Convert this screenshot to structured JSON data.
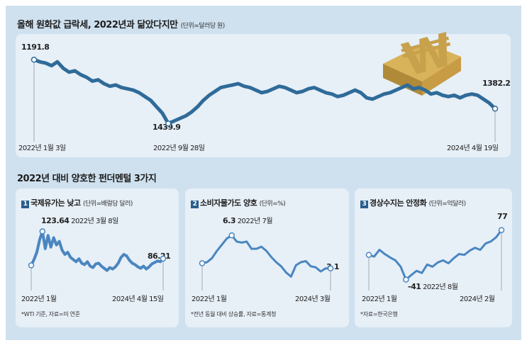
{
  "colors": {
    "line": "#2f6b99",
    "small_line": "#4a86c0",
    "bg": "#cfe1ef",
    "panel": "#e7eff7"
  },
  "header": {
    "title": "올해 원화값 급락세, 2022년과 닮았다지만",
    "unit": "(단위=달러당 원)"
  },
  "section2": {
    "title": "2022년 대비 양호한 펀더멘털 3가지"
  },
  "chart_data": [
    {
      "type": "line",
      "title": "올해 원화값 급락세, 2022년과 닮았다지만",
      "ylabel": "달러당 원",
      "y_inverted": true,
      "ylim": [
        1180,
        1450
      ],
      "x_labels": [
        "2022년 1월 3일",
        "2022년 9월 28일",
        "2024년 4월 19일"
      ],
      "annotations": [
        {
          "label": "1191.8",
          "x": "2022년 1월 3일"
        },
        {
          "label": "1439.9",
          "x": "2022년 9월 28일"
        },
        {
          "label": "1382.2",
          "x": "2024년 4월 19일"
        }
      ],
      "values": [
        1191.8,
        1200,
        1205,
        1215,
        1200,
        1225,
        1240,
        1235,
        1250,
        1260,
        1275,
        1270,
        1285,
        1295,
        1290,
        1300,
        1305,
        1310,
        1320,
        1335,
        1350,
        1375,
        1400,
        1439.9,
        1430,
        1420,
        1410,
        1395,
        1375,
        1350,
        1330,
        1315,
        1300,
        1295,
        1290,
        1285,
        1295,
        1300,
        1310,
        1320,
        1315,
        1305,
        1295,
        1300,
        1310,
        1320,
        1315,
        1305,
        1300,
        1310,
        1320,
        1325,
        1335,
        1330,
        1320,
        1310,
        1320,
        1340,
        1345,
        1335,
        1325,
        1320,
        1310,
        1300,
        1290,
        1305,
        1300,
        1310,
        1325,
        1320,
        1330,
        1335,
        1330,
        1340,
        1330,
        1325,
        1330,
        1345,
        1360,
        1382.2
      ]
    },
    {
      "type": "line",
      "number": "1",
      "title": "국제유가는 낮고",
      "unit": "(단위=배럴당 달러)",
      "ylim": [
        60,
        130
      ],
      "x_labels": [
        "2022년 1월",
        "2024년 4월 15일"
      ],
      "annotations": [
        {
          "label": "123.64",
          "date": "2022년 3월 8일"
        },
        {
          "label": "86.21"
        }
      ],
      "note": "*WTI 기준, 자료=미 연준",
      "values": [
        77,
        85,
        95,
        112,
        123.64,
        100,
        118,
        102,
        115,
        105,
        110,
        98,
        92,
        95,
        88,
        85,
        82,
        86,
        80,
        78,
        82,
        76,
        74,
        79,
        80,
        76,
        73,
        70,
        74,
        72,
        75,
        80,
        88,
        92,
        90,
        84,
        80,
        78,
        75,
        73,
        76,
        72,
        75,
        79,
        81,
        83,
        82,
        86.21
      ]
    },
    {
      "type": "line",
      "number": "2",
      "title": "소비자물가도 양호",
      "unit": "(단위=%)",
      "ylim": [
        1.5,
        7
      ],
      "x_labels": [
        "2022년 1월",
        "2024년 3월"
      ],
      "annotations": [
        {
          "label": "6.3",
          "date": "2022년 7월"
        },
        {
          "label": "3.1"
        }
      ],
      "note": "*전년 동월 대비 상승률, 자료=통계청",
      "values": [
        3.6,
        3.7,
        4.1,
        4.8,
        5.4,
        6.0,
        6.3,
        5.7,
        5.6,
        5.7,
        5.0,
        5.0,
        5.2,
        4.8,
        4.2,
        3.7,
        3.3,
        2.7,
        2.3,
        3.4,
        3.7,
        3.8,
        3.3,
        3.2,
        2.8,
        3.1,
        3.1
      ]
    },
    {
      "type": "line",
      "number": "3",
      "title": "경상수지는 안정화",
      "unit": "(단위=억달러)",
      "ylim": [
        -50,
        85
      ],
      "x_labels": [
        "2022년 1월",
        "2024년 2월"
      ],
      "annotations": [
        {
          "label": "-41",
          "date": "2022년 8월"
        },
        {
          "label": "77"
        }
      ],
      "note": "*자료=한국은행",
      "values": [
        18,
        14,
        30,
        20,
        12,
        5,
        -10,
        -41,
        -30,
        -20,
        -25,
        -5,
        -10,
        0,
        5,
        -2,
        10,
        20,
        18,
        28,
        35,
        30,
        45,
        50,
        60,
        77
      ]
    }
  ]
}
